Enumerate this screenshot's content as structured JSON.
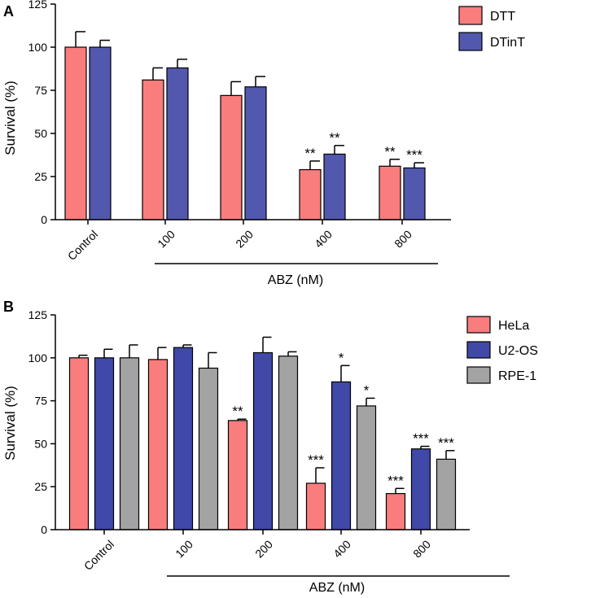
{
  "colors": {
    "DTT": "#fa7d7d",
    "DTinT": "#5258ad",
    "HeLa": "#fa7d7d",
    "U2-OS": "#4048a8",
    "RPE-1": "#a3a3a3",
    "axis": "#000000"
  },
  "chart_data": [
    {
      "type": "bar",
      "panel_label": "A",
      "ylabel": "Survival (%)",
      "xlabel": "ABZ (nM)",
      "ylim": [
        0,
        125
      ],
      "yticks": [
        0,
        25,
        50,
        75,
        100,
        125
      ],
      "categories": [
        "Control",
        "100",
        "200",
        "400",
        "800"
      ],
      "series": [
        {
          "name": "DTT",
          "values": [
            100,
            81,
            72,
            29,
            31
          ],
          "errors": [
            9,
            7,
            8,
            5,
            4
          ],
          "sig": [
            "",
            "",
            "",
            "**",
            "**"
          ]
        },
        {
          "name": "DTinT",
          "values": [
            100,
            88,
            77,
            38,
            30
          ],
          "errors": [
            4,
            5,
            6,
            5,
            3
          ],
          "sig": [
            "",
            "",
            "",
            "**",
            "***"
          ]
        }
      ],
      "legend_position": "top-right"
    },
    {
      "type": "bar",
      "panel_label": "B",
      "ylabel": "Survival (%)",
      "xlabel": "ABZ (nM)",
      "ylim": [
        0,
        125
      ],
      "yticks": [
        0,
        25,
        50,
        75,
        100,
        125
      ],
      "categories": [
        "Control",
        "100",
        "200",
        "400",
        "800"
      ],
      "series": [
        {
          "name": "HeLa",
          "values": [
            100,
            99,
            63.5,
            27,
            21
          ],
          "errors": [
            1.5,
            7,
            0.8,
            9,
            3
          ],
          "sig": [
            "",
            "",
            "**",
            "***",
            "***"
          ]
        },
        {
          "name": "U2-OS",
          "values": [
            100,
            106,
            103,
            86,
            47
          ],
          "errors": [
            5,
            1.5,
            9,
            9.5,
            1.5
          ],
          "sig": [
            "",
            "",
            "",
            "*",
            "***"
          ]
        },
        {
          "name": "RPE-1",
          "values": [
            100,
            94,
            101,
            72,
            41
          ],
          "errors": [
            7.5,
            9,
            2.5,
            4.5,
            5
          ],
          "sig": [
            "",
            "",
            "",
            "*",
            "***"
          ]
        }
      ],
      "legend_position": "top-right"
    }
  ]
}
